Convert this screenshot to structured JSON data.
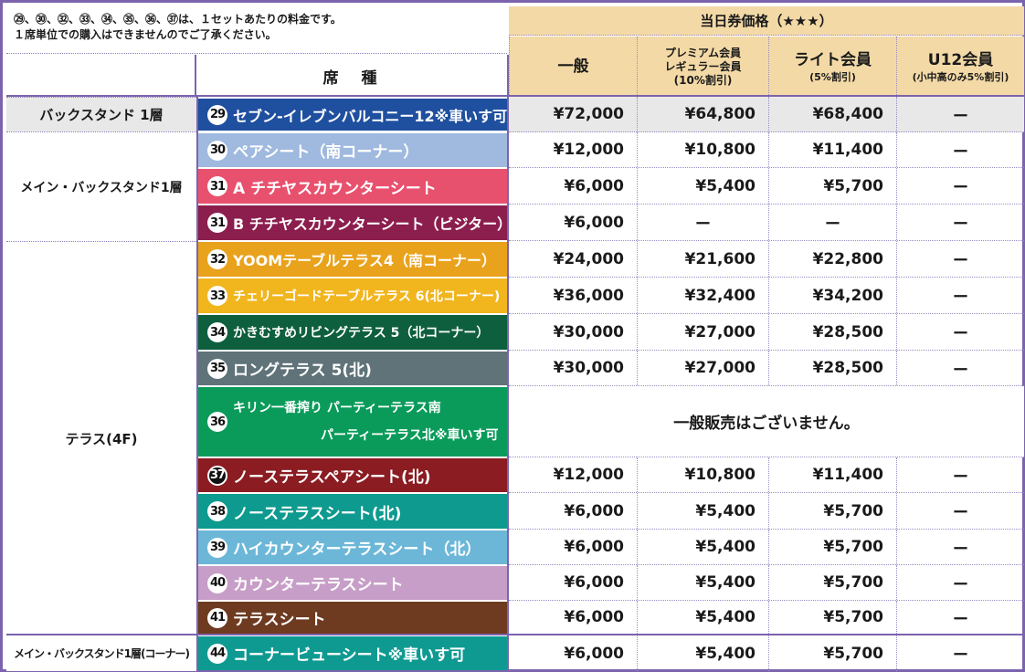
{
  "notes": [
    "㉙、㉚、㉜、㉝、㉞、㉟、㊱、㊲は、１セットあたりの料金です。",
    "１席単位での購入はできませんのでご了承ください。"
  ],
  "header": {
    "seat_label": "席　種",
    "price_title": "当日券価格（★★★）",
    "columns": [
      {
        "name": "一般",
        "lines": []
      },
      {
        "name": "",
        "lines": [
          "プレミアム会員",
          "レギュラー会員",
          "(10%割引)"
        ]
      },
      {
        "name": "ライト会員",
        "lines": [
          "(5%割引)"
        ]
      },
      {
        "name": "U12会員",
        "lines": [
          "(小中高のみ5%割引)"
        ]
      }
    ]
  },
  "groups": [
    {
      "label": "バックスタンド 1層"
    },
    {
      "label": "メイン・バックスタンド1層"
    },
    {
      "label": "テラス(4F)"
    },
    {
      "label": "メイン・バックスタンド1層(コーナー)"
    }
  ],
  "rows": [
    {
      "num": "29",
      "name": "セブン-イレブンバルコニー12※車いす可",
      "color": "#1f4f9f",
      "prices": [
        "¥72,000",
        "¥64,800",
        "¥68,400",
        "ー"
      ]
    },
    {
      "num": "30",
      "name": "ペアシート（南コーナー）",
      "color": "#9fb9df",
      "prices": [
        "¥12,000",
        "¥10,800",
        "¥11,400",
        "ー"
      ]
    },
    {
      "num": "31",
      "name": "A チチヤスカウンターシート",
      "color": "#e8516e",
      "prices": [
        "¥6,000",
        "¥5,400",
        "¥5,700",
        "ー"
      ]
    },
    {
      "num": "31",
      "name": "B チチヤスカウンターシート（ビジター）",
      "color": "#8c1e4e",
      "prices": [
        "¥6,000",
        "ー",
        "ー",
        "ー"
      ]
    },
    {
      "num": "32",
      "name": "YOOMテーブルテラス4（南コーナー）",
      "color": "#e9a21c",
      "prices": [
        "¥24,000",
        "¥21,600",
        "¥22,800",
        "ー"
      ]
    },
    {
      "num": "33",
      "name": "チェリーゴードテーブルテラス 6(北コーナー)",
      "color": "#f1b51e",
      "prices": [
        "¥36,000",
        "¥32,400",
        "¥34,200",
        "ー"
      ]
    },
    {
      "num": "34",
      "name": "かきむすめリビングテラス 5（北コーナー）",
      "color": "#0e5f3e",
      "prices": [
        "¥30,000",
        "¥27,000",
        "¥28,500",
        "ー"
      ]
    },
    {
      "num": "35",
      "name": "ロングテラス 5(北)",
      "color": "#5f7379",
      "prices": [
        "¥30,000",
        "¥27,000",
        "¥28,500",
        "ー"
      ]
    },
    {
      "num": "36",
      "name_line1": "キリン一番搾り パーティーテラス南",
      "name_line2": "パーティーテラス北※車いす可",
      "color": "#0a9b5b",
      "merged_text": "一般販売はございません。"
    },
    {
      "num": "37",
      "name": "ノーステラスペアシート(北)",
      "color": "#8b1c22",
      "prices": [
        "¥12,000",
        "¥10,800",
        "¥11,400",
        "ー"
      ]
    },
    {
      "num": "38",
      "name": "ノーステラスシート(北)",
      "color": "#0e9a8f",
      "prices": [
        "¥6,000",
        "¥5,400",
        "¥5,700",
        "ー"
      ]
    },
    {
      "num": "39",
      "name": "ハイカウンターテラスシート（北）",
      "color": "#6cb7d8",
      "prices": [
        "¥6,000",
        "¥5,400",
        "¥5,700",
        "ー"
      ]
    },
    {
      "num": "40",
      "name": "カウンターテラスシート",
      "color": "#c79ec7",
      "prices": [
        "¥6,000",
        "¥5,400",
        "¥5,700",
        "ー"
      ]
    },
    {
      "num": "41",
      "name": "テラスシート",
      "color": "#6e3a20",
      "prices": [
        "¥6,000",
        "¥5,400",
        "¥5,700",
        "ー"
      ]
    },
    {
      "num": "44",
      "name": "コーナービューシート※車いす可",
      "color": "#0f9a91",
      "prices": [
        "¥6,000",
        "¥5,400",
        "¥5,700",
        "ー"
      ]
    }
  ]
}
